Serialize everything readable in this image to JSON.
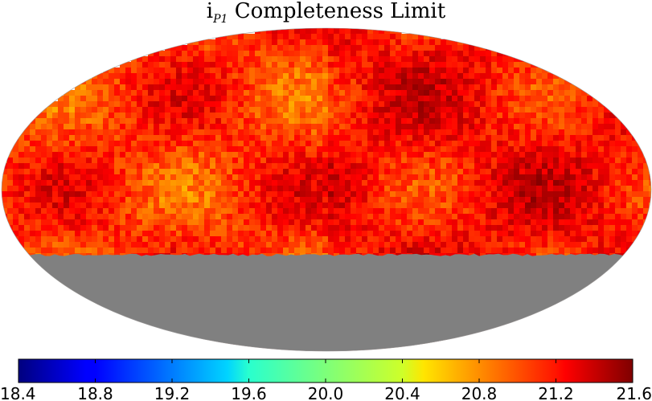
{
  "chart_data": {
    "type": "heatmap",
    "projection": "mollweide",
    "title": {
      "main": "i",
      "subscript": "P1",
      "rest": " Completeness Limit"
    },
    "colorbar": {
      "min": 18.4,
      "max": 21.6,
      "ticks": [
        "18.4",
        "18.8",
        "19.2",
        "19.6",
        "20.0",
        "20.4",
        "20.8",
        "21.2",
        "21.6"
      ],
      "colormap": "jet"
    },
    "coverage": {
      "dec_lower_limit_deg": -30,
      "missing_color": "#808080"
    },
    "typical_limit_range": [
      20.8,
      21.3
    ]
  }
}
